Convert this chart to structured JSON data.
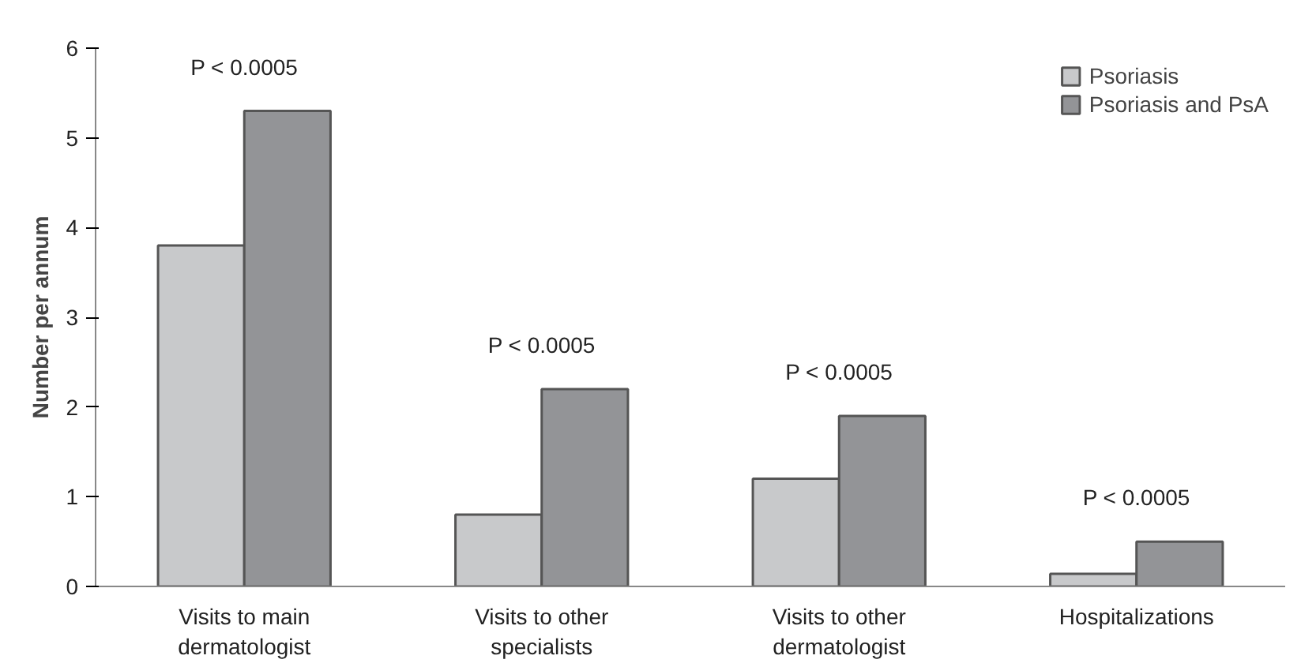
{
  "chart_data": {
    "type": "bar",
    "ylabel": "Number per annum",
    "categories": [
      "Visits to main dermatologist",
      "Visits to other specialists",
      "Visits to other dermatologist",
      "Hospitalizations"
    ],
    "series": [
      {
        "name": "Psoriasis",
        "color": "#c8c9cb",
        "values": [
          3.8,
          0.8,
          1.2,
          0.14
        ]
      },
      {
        "name": "Psoriasis and PsA",
        "color": "#939497",
        "values": [
          5.3,
          2.2,
          1.9,
          0.5
        ]
      }
    ],
    "ylim": [
      0,
      6
    ],
    "yticks": [
      0,
      1,
      2,
      3,
      4,
      5,
      6
    ],
    "grid": false,
    "legend": "top right",
    "annotations": [
      "P < 0.0005",
      "P < 0.0005",
      "P < 0.0005",
      "P < 0.0005"
    ]
  }
}
